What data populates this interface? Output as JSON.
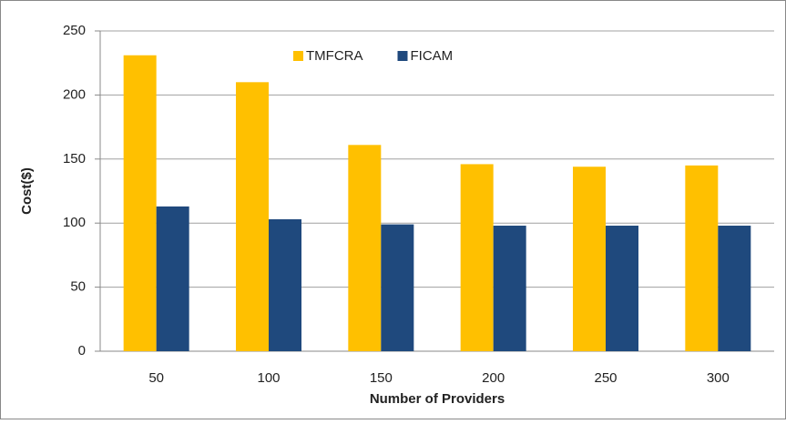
{
  "chart_data": {
    "type": "bar",
    "categories": [
      "50",
      "100",
      "150",
      "200",
      "250",
      "300"
    ],
    "series": [
      {
        "name": "TMFCRA",
        "color": "#FFC000",
        "values": [
          231,
          210,
          161,
          146,
          144,
          145
        ]
      },
      {
        "name": "FICAM",
        "color": "#1F497D",
        "values": [
          113,
          103,
          99,
          98,
          98,
          98
        ]
      }
    ],
    "xlabel": "Number of Providers",
    "ylabel": "Cost($)",
    "ylim": [
      0,
      250
    ],
    "yticks": [
      0,
      50,
      100,
      150,
      200,
      250
    ],
    "grid": true,
    "legend": "top"
  }
}
